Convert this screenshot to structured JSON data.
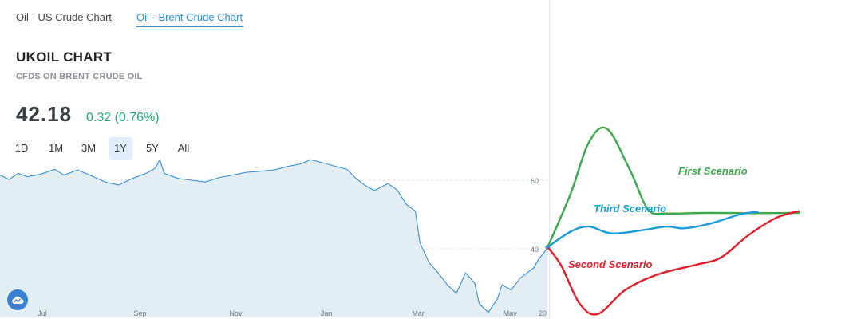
{
  "tabs": [
    {
      "label": "Oil - US Crude Chart",
      "active": false
    },
    {
      "label": "Oil - Brent Crude Chart",
      "active": true
    }
  ],
  "symbol": {
    "title": "UKOIL CHART",
    "subtitle": "CFDS ON BRENT CRUDE OIL",
    "price": "42.18",
    "change": "0.32 (0.76%)"
  },
  "ranges": [
    {
      "label": "1D",
      "active": false
    },
    {
      "label": "1M",
      "active": false
    },
    {
      "label": "3M",
      "active": false
    },
    {
      "label": "1Y",
      "active": true
    },
    {
      "label": "5Y",
      "active": false
    },
    {
      "label": "All",
      "active": false
    }
  ],
  "colors": {
    "accent": "#2e8fd6",
    "positive": "#28a876",
    "area_line": "#3a8ed4",
    "area_fill": "#e3eef4",
    "first_scenario": "#3aa84a",
    "second_scenario": "#e0202a",
    "third_scenario": "#1a9bd8"
  },
  "logo_icon": "cloud-icon",
  "chart_data": {
    "type": "area",
    "ylabel": "",
    "xlabel": "",
    "y_ticks": [
      40,
      60
    ],
    "x_ticks": [
      "Jul",
      "Sep",
      "Nov",
      "Jan",
      "Mar",
      "May"
    ],
    "end_tick": "20",
    "ylim": [
      20,
      70
    ],
    "x_range": [
      0,
      12
    ],
    "series": [
      {
        "values": [
          [
            0,
            61.5
          ],
          [
            0.2,
            60.2
          ],
          [
            0.4,
            62.0
          ],
          [
            0.6,
            61.0
          ],
          [
            0.9,
            61.8
          ],
          [
            1.2,
            63.2
          ],
          [
            1.4,
            61.5
          ],
          [
            1.7,
            63.0
          ],
          [
            2.0,
            61.3
          ],
          [
            2.3,
            59.5
          ],
          [
            2.6,
            58.6
          ],
          [
            2.9,
            60.5
          ],
          [
            3.2,
            62.0
          ],
          [
            3.4,
            63.5
          ],
          [
            3.5,
            66.0
          ],
          [
            3.6,
            62.0
          ],
          [
            3.9,
            60.5
          ],
          [
            4.2,
            60.0
          ],
          [
            4.5,
            59.5
          ],
          [
            4.8,
            60.8
          ],
          [
            5.1,
            61.5
          ],
          [
            5.4,
            62.3
          ],
          [
            5.7,
            62.6
          ],
          [
            6.0,
            63.0
          ],
          [
            6.3,
            64.0
          ],
          [
            6.6,
            64.8
          ],
          [
            6.8,
            66.0
          ],
          [
            7.1,
            65.0
          ],
          [
            7.3,
            64.2
          ],
          [
            7.6,
            63.2
          ],
          [
            7.8,
            60.5
          ],
          [
            8.0,
            58.5
          ],
          [
            8.2,
            57.0
          ],
          [
            8.5,
            59.0
          ],
          [
            8.7,
            57.2
          ],
          [
            8.9,
            53.0
          ],
          [
            9.1,
            51.0
          ],
          [
            9.2,
            41.8
          ],
          [
            9.4,
            36.0
          ],
          [
            9.6,
            33.0
          ],
          [
            9.8,
            29.5
          ],
          [
            10.0,
            27.0
          ],
          [
            10.2,
            33.0
          ],
          [
            10.4,
            30.0
          ],
          [
            10.5,
            24.0
          ],
          [
            10.7,
            21.5
          ],
          [
            10.9,
            25.5
          ],
          [
            11.0,
            29.5
          ],
          [
            11.2,
            28.0
          ],
          [
            11.4,
            31.5
          ],
          [
            11.6,
            33.5
          ],
          [
            11.7,
            34.5
          ],
          [
            11.8,
            37.0
          ],
          [
            11.9,
            38.5
          ],
          [
            12.0,
            40.5
          ]
        ]
      }
    ],
    "scenarios": [
      {
        "name": "First Scenario",
        "points": [
          [
            12.0,
            40.5
          ],
          [
            12.5,
            56
          ],
          [
            12.9,
            71
          ],
          [
            13.3,
            75
          ],
          [
            13.8,
            63
          ],
          [
            14.2,
            51.5
          ],
          [
            14.6,
            50.3
          ],
          [
            15.5,
            50.5
          ],
          [
            16.5,
            50.4
          ],
          [
            17.5,
            50.5
          ]
        ]
      },
      {
        "name": "Second Scenario",
        "points": [
          [
            12.0,
            40.5
          ],
          [
            12.3,
            35
          ],
          [
            12.7,
            24
          ],
          [
            13.1,
            21
          ],
          [
            13.7,
            28
          ],
          [
            14.4,
            32.5
          ],
          [
            15.3,
            35.5
          ],
          [
            15.8,
            37.5
          ],
          [
            16.4,
            44
          ],
          [
            17.0,
            49
          ],
          [
            17.5,
            51
          ]
        ]
      },
      {
        "name": "Third Scenario",
        "points": [
          [
            12.0,
            40.5
          ],
          [
            12.5,
            45
          ],
          [
            12.9,
            46.5
          ],
          [
            13.4,
            44.5
          ],
          [
            14.1,
            45.5
          ],
          [
            14.6,
            46.5
          ],
          [
            15.0,
            46.0
          ],
          [
            15.6,
            47.5
          ],
          [
            16.2,
            50
          ],
          [
            16.6,
            50.8
          ]
        ]
      }
    ]
  }
}
